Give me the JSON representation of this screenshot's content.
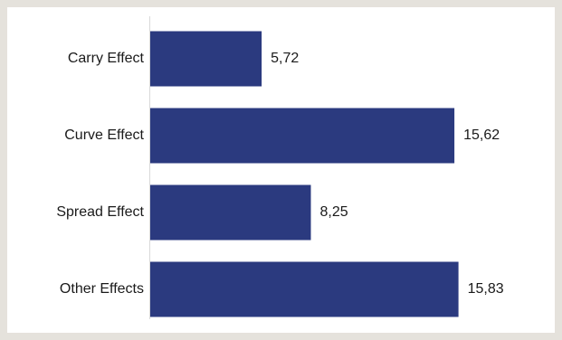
{
  "chart_data": {
    "type": "bar",
    "orientation": "horizontal",
    "categories": [
      "Carry Effect",
      "Curve Effect",
      "Spread Effect",
      "Other Effects"
    ],
    "values": [
      5.72,
      15.62,
      8.25,
      15.83
    ],
    "value_labels": [
      "5,72",
      "15,62",
      "8,25",
      "15,83"
    ],
    "xlim": [
      0,
      16.5
    ],
    "grid": false,
    "legend": "none",
    "bar_color": "#2b3a7f",
    "frame_color": "#e5e2dc"
  }
}
